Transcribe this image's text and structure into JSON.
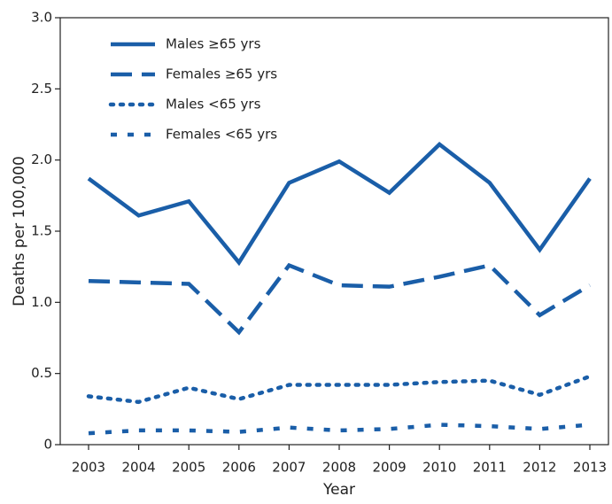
{
  "chart_data": {
    "type": "line",
    "xlabel": "Year",
    "ylabel": "Deaths per 100,000",
    "categories": [
      "2003",
      "2004",
      "2005",
      "2006",
      "2007",
      "2008",
      "2009",
      "2010",
      "2011",
      "2012",
      "2013"
    ],
    "series": [
      {
        "name": "Males ≥65 yrs",
        "color": "#1a5ea8",
        "linestyle": "solid",
        "values": [
          1.87,
          1.61,
          1.71,
          1.28,
          1.84,
          1.99,
          1.77,
          2.11,
          1.84,
          1.37,
          1.87
        ]
      },
      {
        "name": "Females ≥65 yrs",
        "color": "#1a5ea8",
        "linestyle": "dashed",
        "values": [
          1.15,
          1.14,
          1.13,
          0.79,
          1.26,
          1.12,
          1.11,
          1.18,
          1.26,
          0.91,
          1.12
        ]
      },
      {
        "name": "Males <65 yrs",
        "color": "#1a5ea8",
        "linestyle": "dotted",
        "values": [
          0.34,
          0.3,
          0.4,
          0.32,
          0.42,
          0.42,
          0.42,
          0.44,
          0.45,
          0.35,
          0.48
        ]
      },
      {
        "name": "Females <65 yrs",
        "color": "#1a5ea8",
        "linestyle": "short-dashed",
        "values": [
          0.08,
          0.1,
          0.1,
          0.09,
          0.12,
          0.1,
          0.11,
          0.14,
          0.13,
          0.11,
          0.14
        ]
      }
    ],
    "ylim": [
      0,
      3
    ],
    "yticks": [
      0,
      {
        "value": 0.5,
        "label": "0.5"
      },
      {
        "value": 1,
        "label": "1.0"
      },
      {
        "value": 1.5,
        "label": "1.5"
      },
      {
        "value": 2,
        "label": "2.0"
      },
      {
        "value": 2.5,
        "label": "2.5"
      },
      {
        "value": 3,
        "label": "3.0"
      }
    ],
    "legend": "upper left"
  }
}
